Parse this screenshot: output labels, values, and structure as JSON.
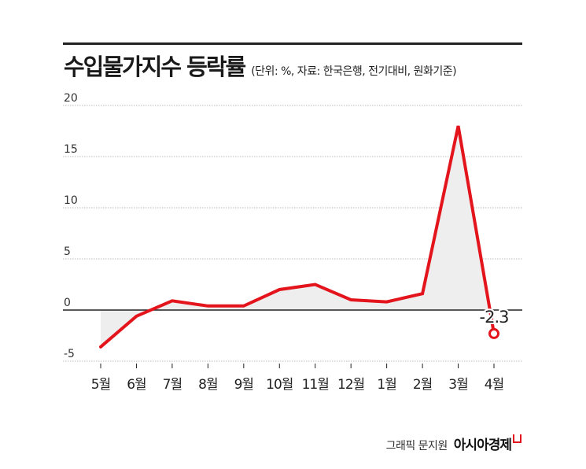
{
  "header": {
    "title": "수입물가지수 등락률",
    "subtitle": "(단위: %, 자료: 한국은행, 전기대비, 원화기준)"
  },
  "footer": {
    "credit": "그래픽 문지원",
    "brand": "아시아경제"
  },
  "colors": {
    "line": "#e3141b",
    "area": "#eeeeee",
    "grid": "#bbbbbb",
    "zero_line": "#222222"
  },
  "chart_data": {
    "type": "line",
    "title": "수입물가지수 등락률",
    "categories": [
      "5월",
      "6월",
      "7월",
      "8월",
      "9월",
      "10월",
      "11월",
      "12월",
      "1월",
      "2월",
      "3월",
      "4월"
    ],
    "series": [
      {
        "values": [
          -3.6,
          -0.6,
          0.9,
          0.4,
          0.4,
          2.0,
          2.5,
          1.0,
          0.8,
          1.6,
          18.0,
          -2.3
        ]
      }
    ],
    "ylim": [
      -5,
      20
    ],
    "yticks": [
      20,
      15,
      10,
      5,
      0,
      -5
    ],
    "ytick_labels": [
      "20",
      "15",
      "10",
      "5",
      "0",
      "-5"
    ],
    "area_fill": true,
    "grid": true,
    "annotation": {
      "index": 11,
      "text": "-2.3"
    }
  }
}
